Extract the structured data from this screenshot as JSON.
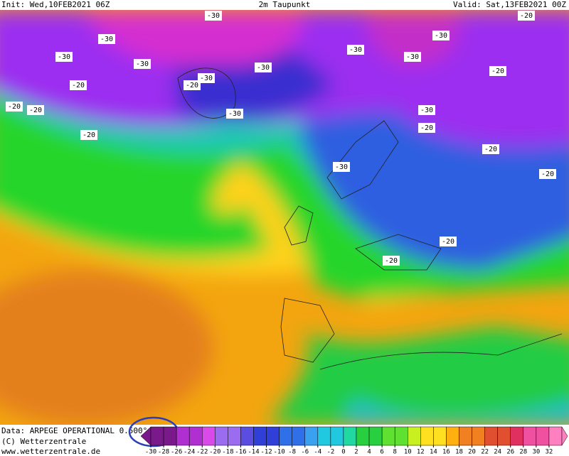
{
  "header": {
    "init": "Init: Wed,10FEB2021 06Z",
    "title": "2m Taupunkt",
    "valid": "Valid: Sat,13FEB2021 00Z"
  },
  "footer": {
    "data": "Data: ARPEGE OPERATIONAL 0.500°",
    "copyright": "(C) Wetterzentrale",
    "url": "www.wetterzentrale.de"
  },
  "colorbar": {
    "ticks": [
      -30,
      -28,
      -26,
      -24,
      -22,
      -20,
      -18,
      -16,
      -14,
      -12,
      -10,
      -8,
      -6,
      -4,
      -2,
      0,
      2,
      4,
      6,
      8,
      10,
      12,
      14,
      16,
      18,
      20,
      22,
      24,
      26,
      28,
      30,
      32
    ]
  },
  "map": {
    "contour_labels": [
      "-30",
      "-30",
      "-30",
      "-30",
      "-20",
      "-30",
      "-30",
      "-20",
      "-30",
      "-20",
      "-20",
      "-30",
      "-20",
      "-30",
      "-20",
      "-30",
      "-20",
      "-20",
      "-20",
      "-30",
      "-20",
      "-30",
      "-20",
      "-20"
    ]
  }
}
